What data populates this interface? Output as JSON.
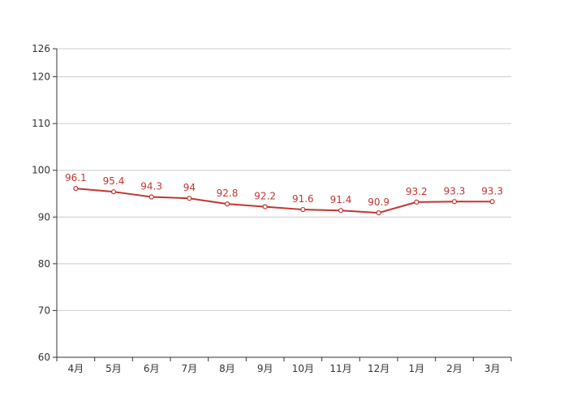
{
  "chart_data": {
    "type": "line",
    "categories": [
      "4月",
      "5月",
      "6月",
      "7月",
      "8月",
      "9月",
      "10月",
      "11月",
      "12月",
      "1月",
      "2月",
      "3月"
    ],
    "series": [
      {
        "values": [
          96.1,
          95.4,
          94.3,
          94,
          92.8,
          92.2,
          91.6,
          91.4,
          90.9,
          93.2,
          93.3,
          93.3
        ],
        "color": "#c23531"
      }
    ],
    "ylim": [
      60,
      126
    ],
    "yticks": [
      60,
      70,
      80,
      90,
      100,
      110,
      120,
      126
    ],
    "grid": true,
    "data_labels": true
  }
}
